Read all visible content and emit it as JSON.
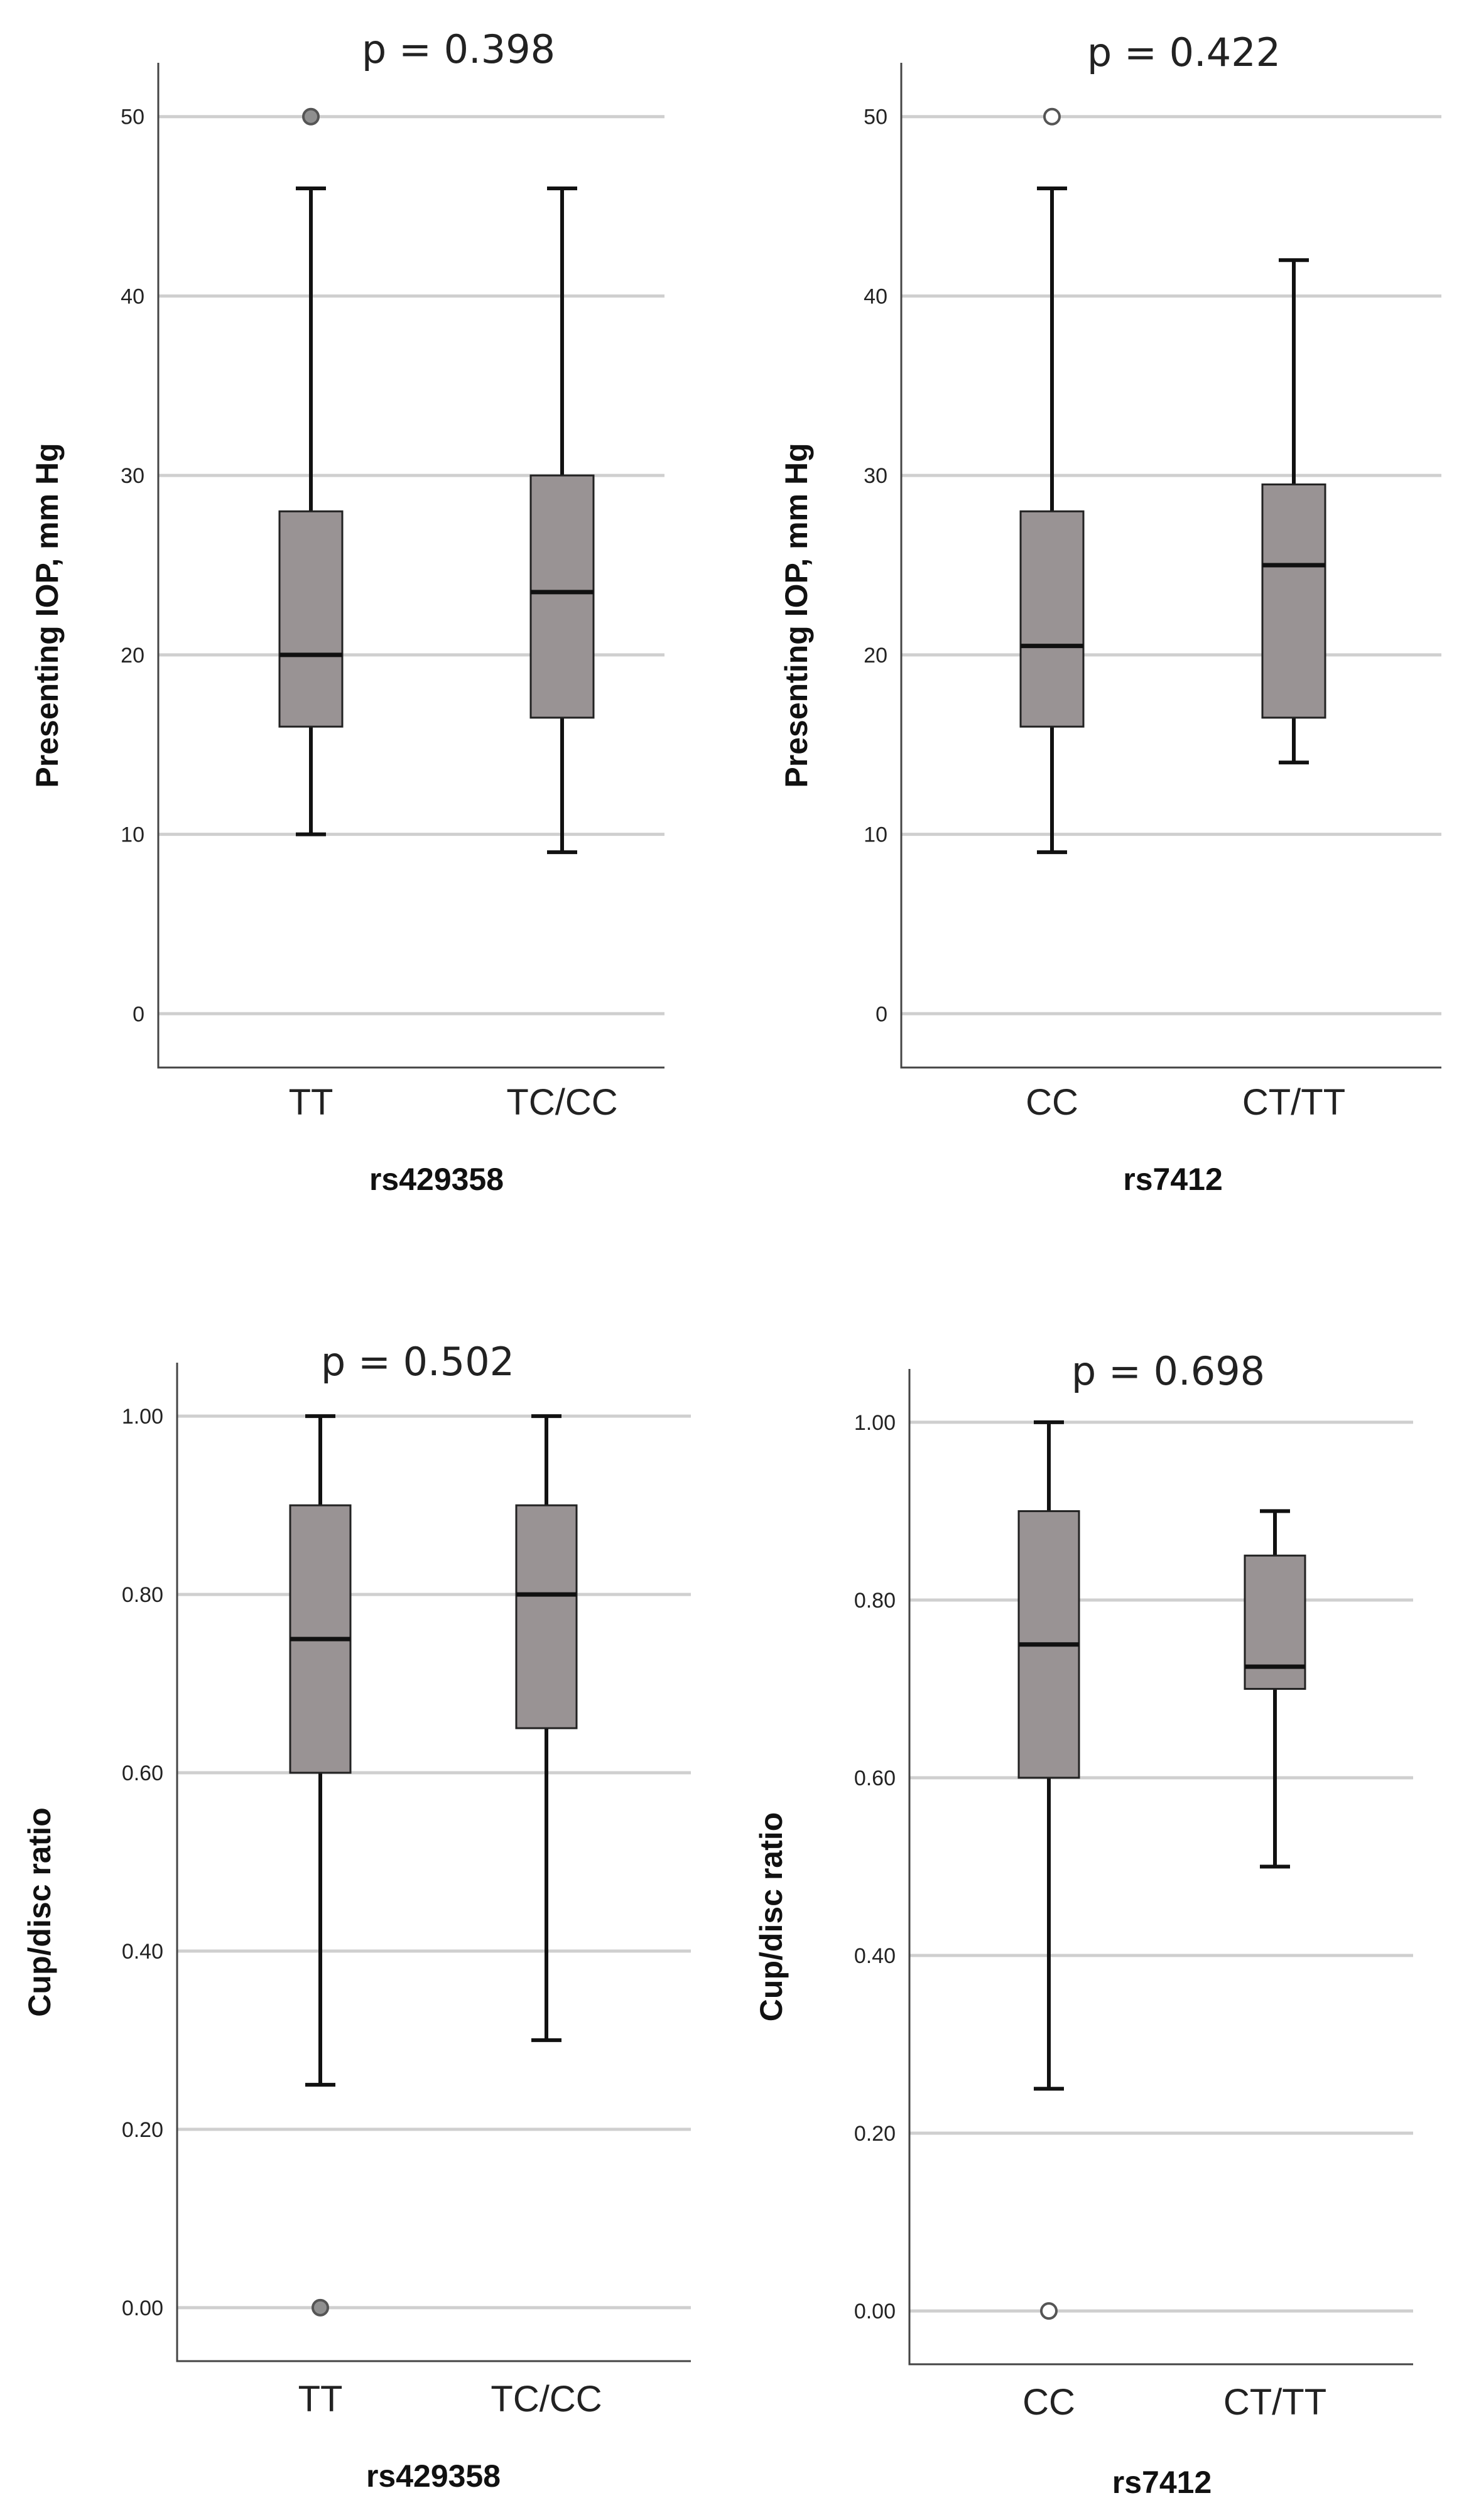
{
  "chart_data": [
    {
      "type": "box",
      "title": "p = 0.398",
      "xlabel": "rs429358",
      "ylabel": "Presenting IOP, mm Hg",
      "ylim": [
        -3,
        53
      ],
      "yticks": [
        0,
        10,
        20,
        30,
        40,
        50
      ],
      "tick_labels": [
        "0",
        "10",
        "20",
        "30",
        "40",
        "50"
      ],
      "grid": true,
      "categories": [
        "TT",
        "TC/CC"
      ],
      "boxes": [
        {
          "min": 10,
          "q1": 16,
          "median": 20,
          "q3": 28,
          "max": 46,
          "outliers": [
            50
          ],
          "outlier_filled": true
        },
        {
          "min": 9,
          "q1": 16.5,
          "median": 23.5,
          "q3": 30,
          "max": 46,
          "outliers": [],
          "outlier_filled": false
        }
      ]
    },
    {
      "type": "box",
      "title": "p = 0.422",
      "xlabel": "rs7412",
      "ylabel": "Presenting IOP, mm Hg",
      "ylim": [
        -3,
        53
      ],
      "yticks": [
        0,
        10,
        20,
        30,
        40,
        50
      ],
      "tick_labels": [
        "0",
        "10",
        "20",
        "30",
        "40",
        "50"
      ],
      "grid": true,
      "categories": [
        "CC",
        "CT/TT"
      ],
      "boxes": [
        {
          "min": 9,
          "q1": 16,
          "median": 20.5,
          "q3": 28,
          "max": 46,
          "outliers": [
            50
          ],
          "outlier_filled": false
        },
        {
          "min": 14,
          "q1": 16.5,
          "median": 25,
          "q3": 29.5,
          "max": 42,
          "outliers": [],
          "outlier_filled": false
        }
      ]
    },
    {
      "type": "box",
      "title": "p = 0.502",
      "xlabel": "rs429358",
      "ylabel": "Cup/disc ratio",
      "ylim": [
        -0.06,
        1.06
      ],
      "yticks": [
        0,
        0.2,
        0.4,
        0.6,
        0.8,
        1.0
      ],
      "tick_labels": [
        "0.00",
        "0.20",
        "0.40",
        "0.60",
        "0.80",
        "1.00"
      ],
      "grid": true,
      "categories": [
        "TT",
        "TC/CC"
      ],
      "boxes": [
        {
          "min": 0.25,
          "q1": 0.6,
          "median": 0.75,
          "q3": 0.9,
          "max": 1.0,
          "outliers": [
            0.0
          ],
          "outlier_filled": true
        },
        {
          "min": 0.3,
          "q1": 0.65,
          "median": 0.8,
          "q3": 0.9,
          "max": 1.0,
          "outliers": [],
          "outlier_filled": false
        }
      ]
    },
    {
      "type": "box",
      "title": "p = 0.698",
      "xlabel": "rs7412",
      "ylabel": "Cup/disc ratio",
      "ylim": [
        -0.06,
        1.06
      ],
      "yticks": [
        0,
        0.2,
        0.4,
        0.6,
        0.8,
        1.0
      ],
      "tick_labels": [
        "0.00",
        "0.20",
        "0.40",
        "0.60",
        "0.80",
        "1.00"
      ],
      "grid": true,
      "categories": [
        "CC",
        "CT/TT"
      ],
      "boxes": [
        {
          "min": 0.25,
          "q1": 0.6,
          "median": 0.75,
          "q3": 0.9,
          "max": 1.0,
          "outliers": [
            0.0
          ],
          "outlier_filled": false
        },
        {
          "min": 0.5,
          "q1": 0.7,
          "median": 0.725,
          "q3": 0.85,
          "max": 0.9,
          "outliers": [],
          "outlier_filled": false
        }
      ]
    }
  ]
}
